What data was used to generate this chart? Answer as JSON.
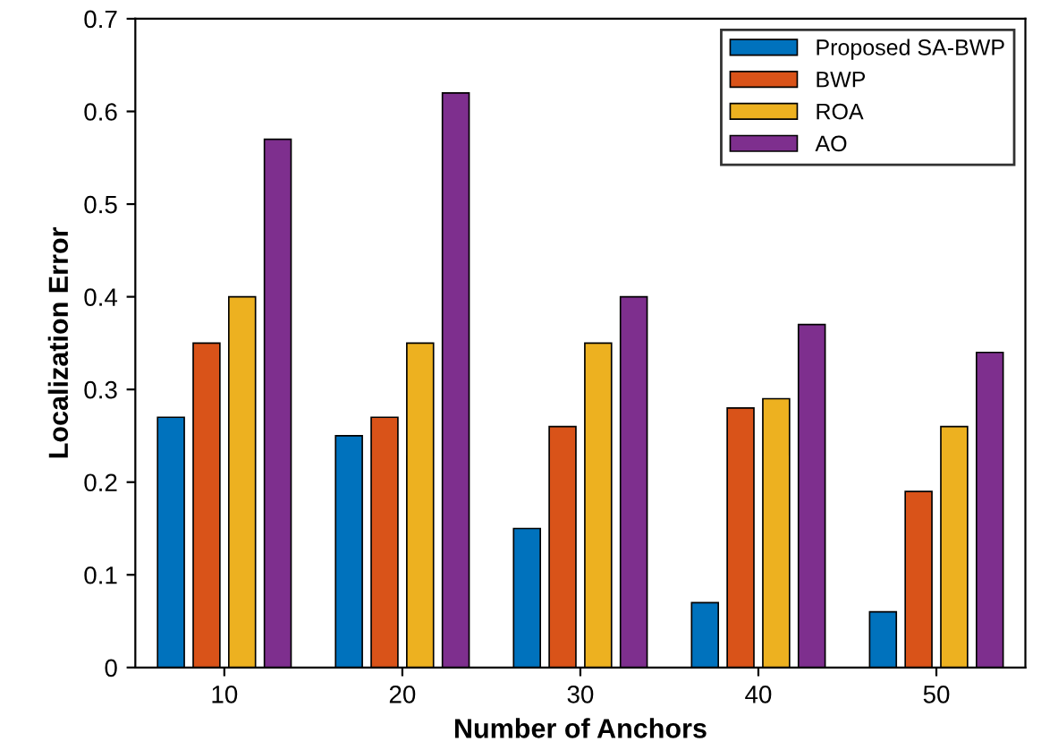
{
  "chart_data": {
    "type": "bar",
    "xlabel": "Number of Anchors",
    "ylabel": "Localization Error",
    "categories": [
      "10",
      "20",
      "30",
      "40",
      "50"
    ],
    "series": [
      {
        "name": "Proposed SA-BWP",
        "color": "#0072bd",
        "values": [
          0.27,
          0.25,
          0.15,
          0.07,
          0.06
        ]
      },
      {
        "name": "BWP",
        "color": "#d95319",
        "values": [
          0.35,
          0.27,
          0.26,
          0.28,
          0.19
        ]
      },
      {
        "name": "ROA",
        "color": "#edb120",
        "values": [
          0.4,
          0.35,
          0.35,
          0.29,
          0.26
        ]
      },
      {
        "name": "AO",
        "color": "#7e2f8e",
        "values": [
          0.57,
          0.62,
          0.4,
          0.37,
          0.34
        ]
      }
    ],
    "ylim": [
      0,
      0.7
    ],
    "yticks": [
      0,
      0.1,
      0.2,
      0.3,
      0.4,
      0.5,
      0.6,
      0.7
    ],
    "grid": false,
    "legend": "top right"
  }
}
